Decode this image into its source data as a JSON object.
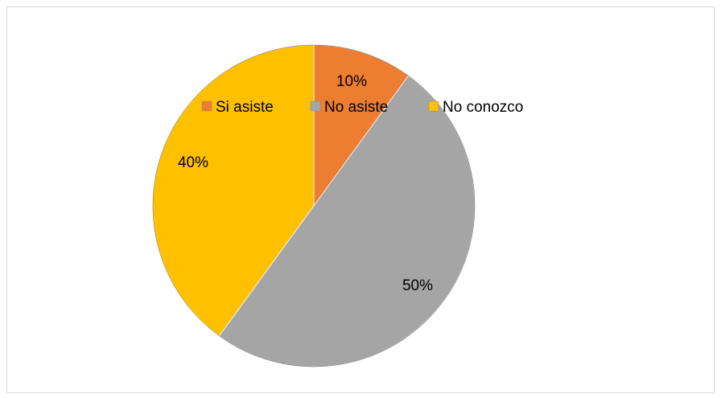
{
  "chart_data": {
    "type": "pie",
    "title": "",
    "categories": [
      "Si asiste",
      "No asiste",
      "No conozco"
    ],
    "values": [
      10,
      50,
      40
    ],
    "data_labels": [
      "10%",
      "50%",
      "40%"
    ],
    "colors": [
      "#ED7D31",
      "#A5A5A5",
      "#FFC000"
    ],
    "legend": {
      "position": "top",
      "entries": [
        "Si asiste",
        "No asiste",
        "No conozco"
      ]
    }
  }
}
